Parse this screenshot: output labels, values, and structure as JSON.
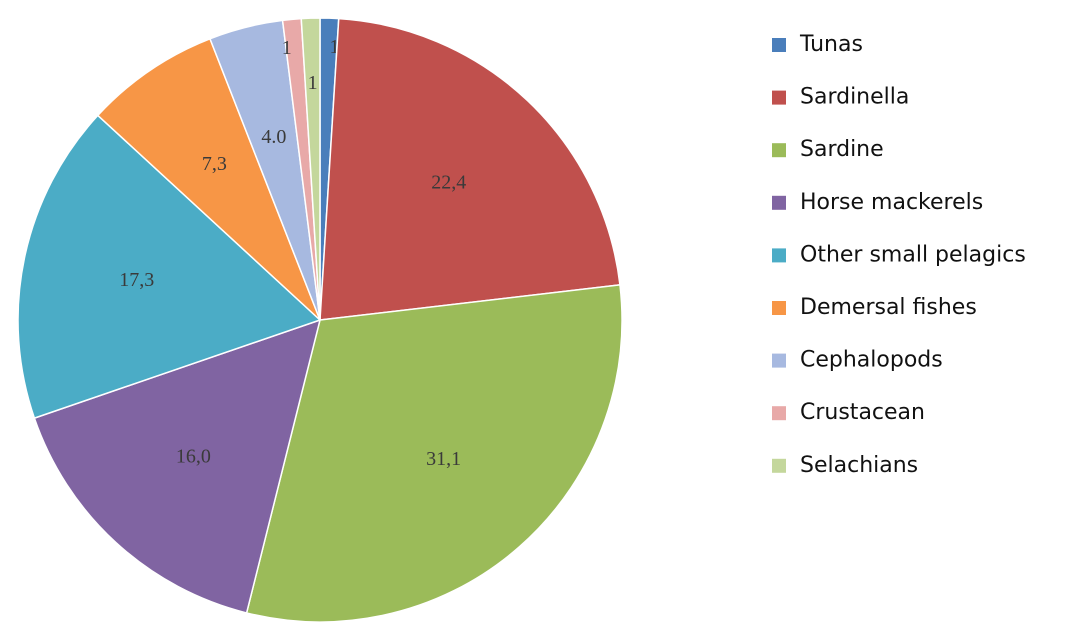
{
  "chart_data": {
    "type": "pie",
    "categories": [
      "Tunas",
      "Sardinella",
      "Sardine",
      "Horse mackerels",
      "Other small pelagics",
      "Demersal fishes",
      "Cephalopods",
      "Crustacean",
      "Selachians"
    ],
    "values": [
      1,
      22.4,
      31.1,
      16.0,
      17.3,
      7.3,
      4.0,
      1,
      1
    ],
    "value_labels": [
      "1",
      "22,4",
      "31,1",
      "16,0",
      "17,3",
      "7,3",
      "4.0",
      "1",
      "1"
    ],
    "colors": [
      "#4a7ebb",
      "#c0504d",
      "#9bbb59",
      "#8064a2",
      "#4bacc6",
      "#f79646",
      "#a7b9e0",
      "#e8a9a8",
      "#c4d79c"
    ],
    "legend": "right"
  }
}
